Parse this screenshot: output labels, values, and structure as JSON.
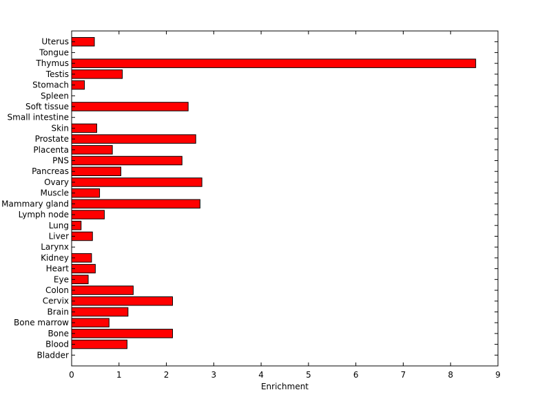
{
  "chart_data": {
    "type": "bar",
    "orientation": "horizontal",
    "categories": [
      "Uterus",
      "Tongue",
      "Thymus",
      "Testis",
      "Stomach",
      "Spleen",
      "Soft tissue",
      "Small intestine",
      "Skin",
      "Prostate",
      "Placenta",
      "PNS",
      "Pancreas",
      "Ovary",
      "Muscle",
      "Mammary gland",
      "Lymph node",
      "Lung",
      "Liver",
      "Larynx",
      "Kidney",
      "Heart",
      "Eye",
      "Colon",
      "Cervix",
      "Brain",
      "Bone marrow",
      "Bone",
      "Blood",
      "Bladder"
    ],
    "values": [
      0.48,
      0,
      8.53,
      1.07,
      0.27,
      0,
      2.46,
      0,
      0.53,
      2.62,
      0.86,
      2.33,
      1.04,
      2.75,
      0.59,
      2.71,
      0.69,
      0.2,
      0.44,
      0,
      0.42,
      0.5,
      0.35,
      1.3,
      2.13,
      1.19,
      0.79,
      2.13,
      1.17,
      0
    ],
    "xlabel": "Enrichment",
    "ylabel": "",
    "title": "",
    "xlim": [
      0,
      9
    ],
    "xticks": [
      0,
      1,
      2,
      3,
      4,
      5,
      6,
      7,
      8,
      9
    ],
    "grid": false,
    "legend": "none",
    "colors": {
      "bar": "#ff0000",
      "edge": "#000000",
      "axis": "#000000"
    }
  }
}
